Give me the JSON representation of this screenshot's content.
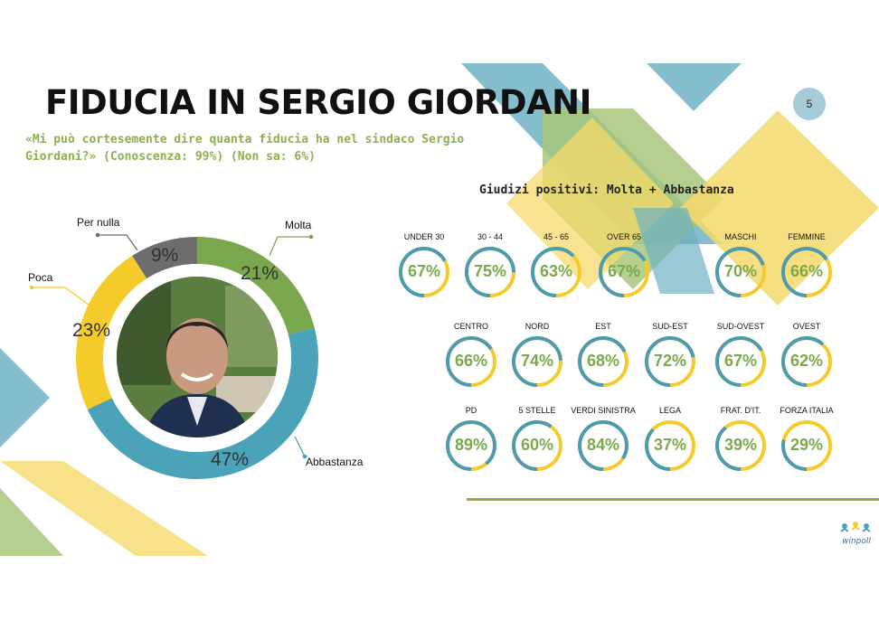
{
  "title": "FIDUCIA IN SERGIO GIORDANI",
  "page_number": "5",
  "subtitle": "«Mi può cortesemente dire quanta fiducia ha nel sindaco Sergio Giordani?» (Conoscenza: 99%) (Non sa: 6%)",
  "colors": {
    "molta": "#7aa74e",
    "abbastanza": "#4aa3b8",
    "poca": "#f5cb2c",
    "per_nulla": "#6d6d6d",
    "gauge_fill": "#f5cb2c",
    "gauge_track": "#4e9bb0",
    "accent_green": "#8cb04b"
  },
  "chart_data": [
    {
      "type": "pie",
      "categories": [
        "Molta",
        "Abbastanza",
        "Poca",
        "Per nulla"
      ],
      "values": [
        21,
        47,
        23,
        9
      ],
      "labels": [
        "21%",
        "47%",
        "23%",
        "9%"
      ]
    },
    {
      "type": "bar",
      "title": "Giudizi positivi: Molta + Abbastanza",
      "categories": [
        "UNDER 30",
        "30 - 44",
        "45 - 65",
        "OVER 65",
        "MASCHI",
        "FEMMINE",
        "CENTRO",
        "NORD",
        "EST",
        "SUD-EST",
        "SUD-OVEST",
        "OVEST",
        "PD",
        "5 STELLE",
        "VERDI SINISTRA",
        "LEGA",
        "FRAT. D'IT.",
        "FORZA ITALIA"
      ],
      "values": [
        67,
        75,
        63,
        67,
        70,
        66,
        66,
        74,
        68,
        72,
        67,
        62,
        89,
        60,
        84,
        37,
        39,
        29
      ],
      "labels": [
        "67%",
        "75%",
        "63%",
        "67%",
        "70%",
        "66%",
        "66%",
        "74%",
        "68%",
        "72%",
        "67%",
        "62%",
        "89%",
        "60%",
        "84%",
        "37%",
        "39%",
        "29%"
      ]
    }
  ],
  "logo_text": "winpoll"
}
